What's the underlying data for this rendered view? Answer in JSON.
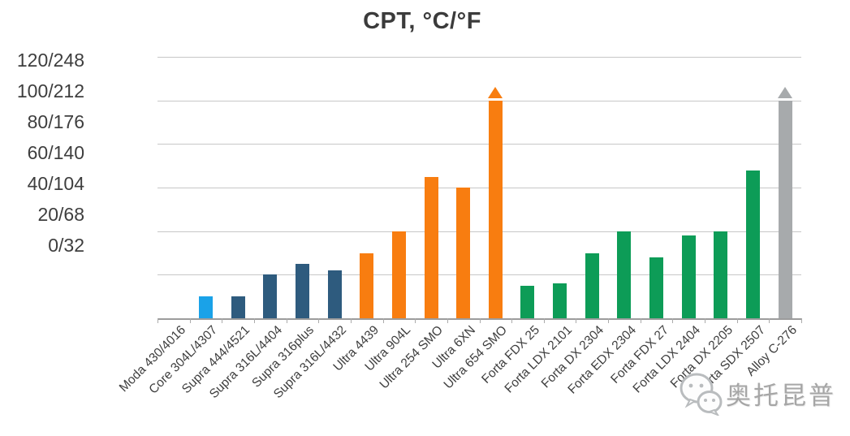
{
  "chart_data": {
    "type": "bar",
    "title": "CPT, °C/°F",
    "y_axis_unit": "°C/°F",
    "y_tick_labels": [
      "120/248",
      "100/212",
      "80/176",
      "60/140",
      "40/104",
      "20/68",
      "0/32"
    ],
    "ylim": [
      0,
      120
    ],
    "grid": "horizontal-on",
    "legend": "none",
    "categories": [
      "Moda 430/4016",
      "Core 304L/4307",
      "Supra 444/4521",
      "Supra 316L/4404",
      "Supra 316plus",
      "Supra 316L/4432",
      "Ultra 4439",
      "Ultra 904L",
      "Ultra 254 SMO",
      "Ultra 6XN",
      "Ultra 654 SMO",
      "Forta FDX 25",
      "Forta LDX 2101",
      "Forta DX 2304",
      "Forta EDX 2304",
      "Forta FDX 27",
      "Forta LDX 2404",
      "Forta DX 2205",
      "Forta SDX 2507",
      "Alloy C-276"
    ],
    "values": [
      null,
      10,
      10,
      20,
      25,
      22,
      30,
      40,
      65,
      60,
      100,
      15,
      16,
      30,
      40,
      28,
      38,
      40,
      68,
      100
    ],
    "bar_colors": [
      null,
      "#1aa2e8",
      "#2e5b7e",
      "#2e5b7e",
      "#2e5b7e",
      "#2e5b7e",
      "#f87d10",
      "#f87d10",
      "#f87d10",
      "#f87d10",
      "#f87d10",
      "#0d9c57",
      "#0d9c57",
      "#0d9c57",
      "#0d9c57",
      "#0d9c57",
      "#0d9c57",
      "#0d9c57",
      "#0d9c57",
      "#a7aaac"
    ],
    "exceeds_scale_indices": [
      10,
      19
    ],
    "exceeds_scale_note": "triangle arrow above bar means value exceeds 100/212 on the scale"
  },
  "watermark": {
    "icon": "wechat-icon",
    "text": "奥托昆普"
  },
  "colors": {
    "grid": "#c7c7c7",
    "axis": "#9c9c9c",
    "tick": "#ababab",
    "text": "#3e3e3e",
    "title": "#3b3b3b",
    "watermark": "#a6a6a6"
  }
}
